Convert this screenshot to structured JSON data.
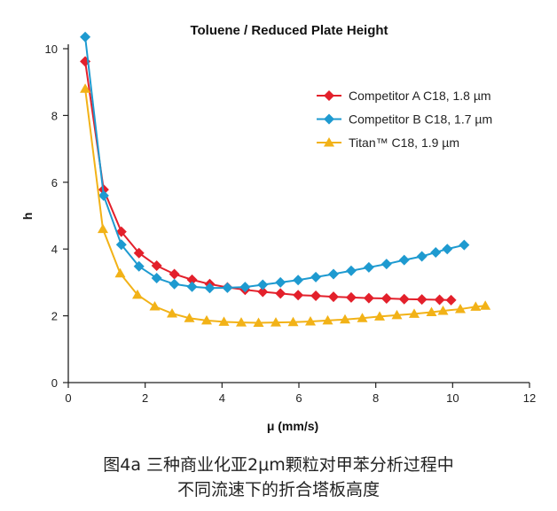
{
  "chart_data": {
    "type": "line",
    "title": "Toluene / Reduced Plate Height",
    "xlabel": "μ (mm/s)",
    "ylabel": "h",
    "xlim": [
      0,
      12
    ],
    "ylim": [
      0,
      10
    ],
    "xticks": [
      "0",
      "2",
      "4",
      "6",
      "8",
      "10",
      "12"
    ],
    "yticks": [
      "0",
      "2",
      "4",
      "6",
      "8",
      "10"
    ],
    "grid": false,
    "legend_position": "top-right",
    "series": [
      {
        "name": "Competitor A C18, 1.8 µm",
        "color": "#e3202b",
        "marker": "diamond",
        "x": [
          0.44,
          0.92,
          1.38,
          1.84,
          2.3,
          2.76,
          3.22,
          3.68,
          4.14,
          4.6,
          5.06,
          5.52,
          5.98,
          6.44,
          6.9,
          7.36,
          7.82,
          8.28,
          8.74,
          9.2,
          9.66,
          9.96
        ],
        "y": [
          9.62,
          5.78,
          4.52,
          3.88,
          3.5,
          3.25,
          3.08,
          2.95,
          2.85,
          2.78,
          2.72,
          2.67,
          2.62,
          2.6,
          2.57,
          2.55,
          2.53,
          2.52,
          2.5,
          2.49,
          2.48,
          2.47
        ]
      },
      {
        "name": "Competitor B C18, 1.7 µm",
        "color": "#1e9ad0",
        "marker": "diamond",
        "x": [
          0.44,
          0.92,
          1.38,
          1.84,
          2.3,
          2.76,
          3.22,
          3.68,
          4.14,
          4.6,
          5.06,
          5.52,
          5.98,
          6.44,
          6.9,
          7.36,
          7.82,
          8.28,
          8.74,
          9.2,
          9.56,
          9.86,
          10.3
        ],
        "y": [
          10.35,
          5.6,
          4.13,
          3.48,
          3.13,
          2.95,
          2.87,
          2.83,
          2.84,
          2.86,
          2.93,
          3.0,
          3.07,
          3.16,
          3.25,
          3.35,
          3.45,
          3.55,
          3.67,
          3.78,
          3.9,
          4.0,
          4.12
        ]
      },
      {
        "name": "Titan™ C18, 1.9 µm",
        "color": "#f2b217",
        "marker": "triangle",
        "x": [
          0.44,
          0.9,
          1.35,
          1.8,
          2.25,
          2.7,
          3.15,
          3.6,
          4.05,
          4.5,
          4.95,
          5.4,
          5.85,
          6.3,
          6.75,
          7.2,
          7.65,
          8.1,
          8.55,
          9.0,
          9.45,
          9.75,
          10.2,
          10.6,
          10.85
        ],
        "y": [
          8.8,
          4.6,
          3.27,
          2.63,
          2.28,
          2.07,
          1.93,
          1.86,
          1.82,
          1.8,
          1.79,
          1.8,
          1.81,
          1.83,
          1.86,
          1.89,
          1.93,
          1.98,
          2.02,
          2.06,
          2.11,
          2.15,
          2.2,
          2.27,
          2.3
        ]
      }
    ]
  },
  "caption": {
    "line1": "图4a 三种商业化亚2μm颗粒对甲苯分析过程中",
    "line2": "不同流速下的折合塔板高度"
  }
}
